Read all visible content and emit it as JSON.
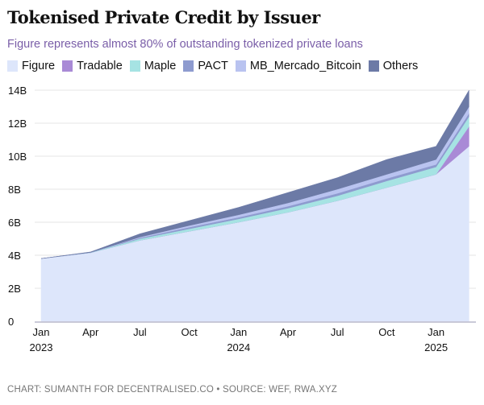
{
  "title": "Tokenised Private Credit by Issuer",
  "subtitle": "Figure represents almost 80% of outstanding tokenized private loans",
  "footer": "CHART: SUMANTH FOR DECENTRALISED.CO • SOURCE: WEF, RWA.XYZ",
  "chart_data": {
    "type": "area",
    "stacked": true,
    "title": "Tokenised Private Credit by Issuer",
    "xlabel": "",
    "ylabel": "",
    "ylim": [
      0,
      14
    ],
    "grid": true,
    "legend_position": "top-left",
    "x": [
      "2023-01",
      "2023-04",
      "2023-07",
      "2023-10",
      "2024-01",
      "2024-04",
      "2024-07",
      "2024-10",
      "2025-01",
      "2025-03"
    ],
    "x_months": [
      0,
      3,
      6,
      9,
      12,
      15,
      18,
      21,
      24,
      26
    ],
    "yticks": [
      {
        "v": 0,
        "label": "0"
      },
      {
        "v": 2,
        "label": "2B"
      },
      {
        "v": 4,
        "label": "4B"
      },
      {
        "v": 6,
        "label": "6B"
      },
      {
        "v": 8,
        "label": "8B"
      },
      {
        "v": 10,
        "label": "10B"
      },
      {
        "v": 12,
        "label": "12B"
      },
      {
        "v": 14,
        "label": "14B"
      }
    ],
    "xticks": [
      {
        "m": 0,
        "label": "Jan",
        "year": "2023"
      },
      {
        "m": 3,
        "label": "Apr",
        "year": ""
      },
      {
        "m": 6,
        "label": "Jul",
        "year": ""
      },
      {
        "m": 9,
        "label": "Oct",
        "year": ""
      },
      {
        "m": 12,
        "label": "Jan",
        "year": "2024"
      },
      {
        "m": 15,
        "label": "Apr",
        "year": ""
      },
      {
        "m": 18,
        "label": "Jul",
        "year": ""
      },
      {
        "m": 21,
        "label": "Oct",
        "year": ""
      },
      {
        "m": 24,
        "label": "Jan",
        "year": "2025"
      }
    ],
    "series": [
      {
        "name": "Figure",
        "color": "#dde6fb",
        "values": [
          3.8,
          4.15,
          4.9,
          5.45,
          6.0,
          6.6,
          7.3,
          8.1,
          8.9,
          10.6
        ]
      },
      {
        "name": "Tradable",
        "color": "#a98ad6",
        "values": [
          0,
          0,
          0,
          0,
          0,
          0,
          0,
          0,
          0,
          1.2
        ]
      },
      {
        "name": "Maple",
        "color": "#a6e3e3",
        "values": [
          0,
          0.02,
          0.1,
          0.15,
          0.2,
          0.25,
          0.3,
          0.4,
          0.45,
          0.6
        ]
      },
      {
        "name": "PACT",
        "color": "#8e9bcf",
        "values": [
          0,
          0,
          0.05,
          0.1,
          0.1,
          0.12,
          0.15,
          0.15,
          0.15,
          0.2
        ]
      },
      {
        "name": "MB_Mercado_Bitcoin",
        "color": "#b9c3f0",
        "values": [
          0,
          0,
          0.05,
          0.1,
          0.15,
          0.2,
          0.25,
          0.25,
          0.3,
          0.4
        ]
      },
      {
        "name": "Others",
        "color": "#6c7aa6",
        "values": [
          0,
          0.03,
          0.2,
          0.3,
          0.45,
          0.63,
          0.7,
          0.9,
          0.8,
          1.0
        ]
      }
    ]
  }
}
